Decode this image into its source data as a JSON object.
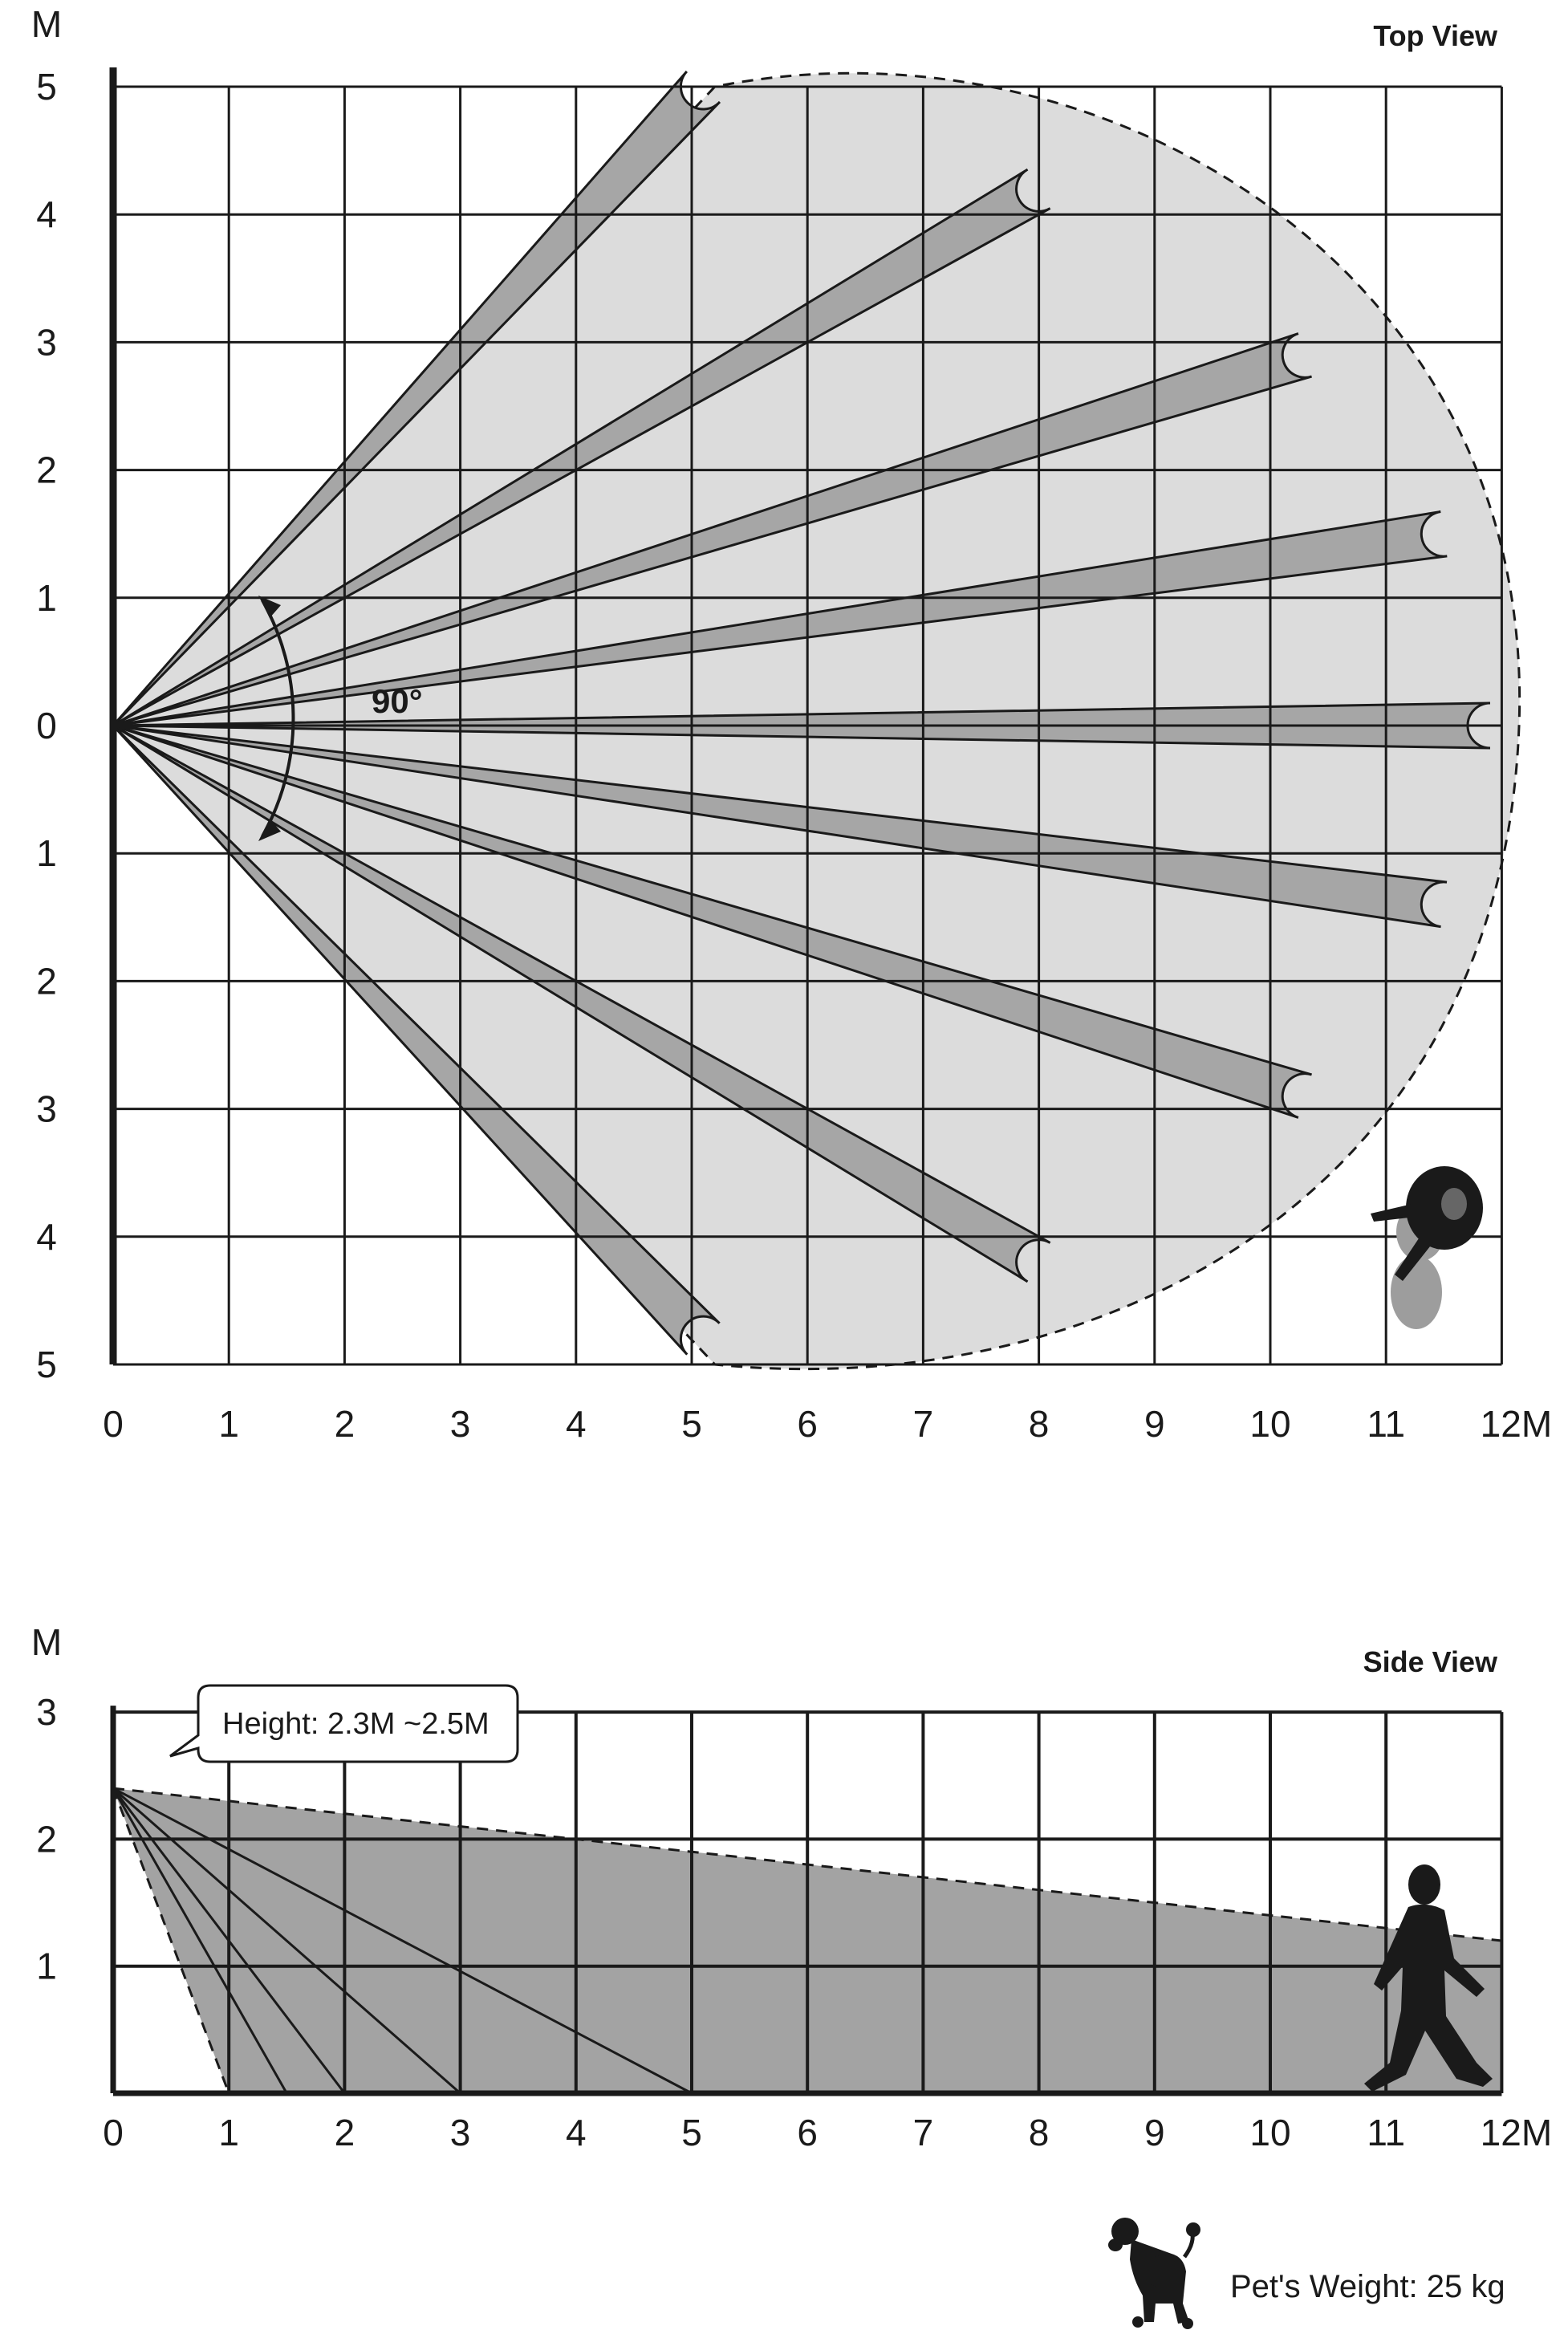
{
  "top_view": {
    "title": "Top View",
    "unit_label": "M",
    "angle_label": "90°",
    "y_ticks": [
      "5",
      "4",
      "3",
      "2",
      "1",
      "0",
      "1",
      "2",
      "3",
      "4",
      "5"
    ],
    "x_ticks": [
      "0",
      "1",
      "2",
      "3",
      "4",
      "5",
      "6",
      "7",
      "8",
      "9",
      "10",
      "11",
      "12M"
    ],
    "beam_ends": [
      {
        "x": 5.1,
        "y": 5.0
      },
      {
        "x": 8.0,
        "y": 4.2
      },
      {
        "x": 10.3,
        "y": 2.9
      },
      {
        "x": 11.5,
        "y": 1.5
      },
      {
        "x": 11.9,
        "y": 0.0
      },
      {
        "x": 11.5,
        "y": -1.4
      },
      {
        "x": 10.3,
        "y": -2.9
      },
      {
        "x": 8.0,
        "y": -4.2
      },
      {
        "x": 5.1,
        "y": -4.8
      }
    ],
    "figure_icon": "person-top-view-icon"
  },
  "side_view": {
    "title": "Side View",
    "unit_label": "M",
    "callout": "Height: 2.3M ~2.5M",
    "y_ticks": [
      "3",
      "2",
      "1"
    ],
    "x_ticks": [
      "0",
      "1",
      "2",
      "3",
      "4",
      "5",
      "6",
      "7",
      "8",
      "9",
      "10",
      "11",
      "12M"
    ],
    "mount_height": 2.4,
    "far_height": 1.2,
    "beam_ground_x": [
      1.0,
      1.5,
      2.0,
      3.0,
      5.0
    ],
    "figure_icon": "walking-person-icon"
  },
  "pet": {
    "label": "Pet's Weight: 25 kg",
    "icon": "poodle-icon"
  },
  "colors": {
    "coverage": "#dcdcdc",
    "beam": "#a6a6a6",
    "side_fill": "#a3a3a3",
    "grid": "#1a1a1a"
  }
}
